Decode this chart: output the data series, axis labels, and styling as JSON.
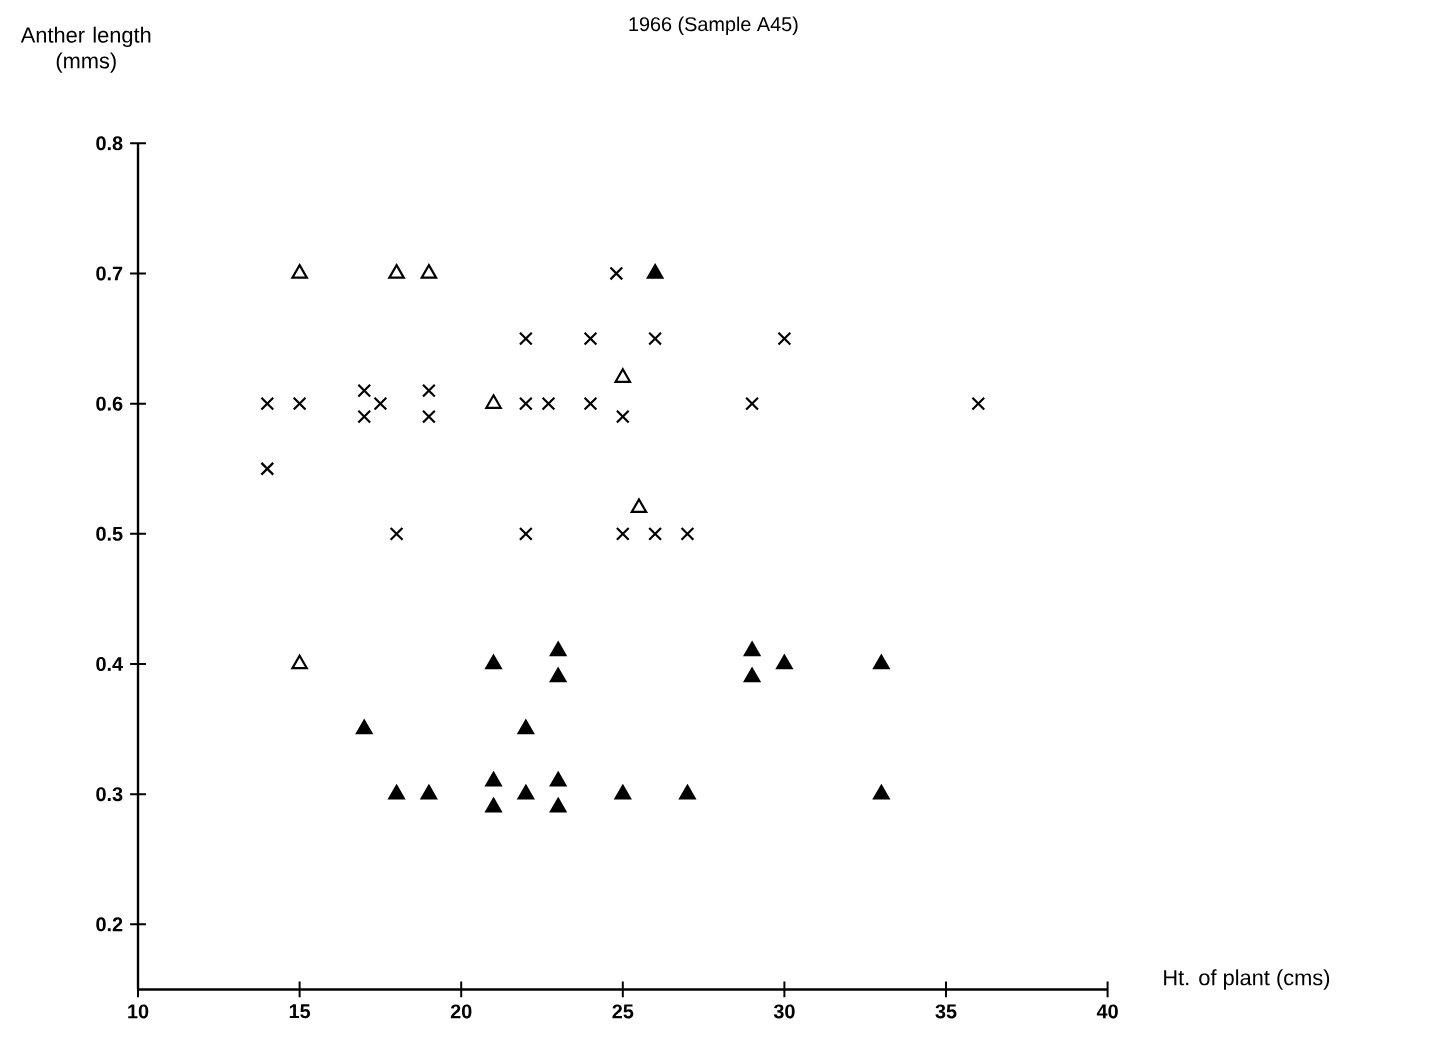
{
  "chart_data": {
    "type": "scatter",
    "title": "1966 (Sample A45)",
    "xlabel": "Ht. of plant (cms)",
    "ylabel": "Anther length (mms)",
    "xlim": [
      10,
      40
    ],
    "ylim": [
      0.15,
      0.8
    ],
    "xticks": [
      10,
      15,
      20,
      25,
      30,
      35,
      40
    ],
    "yticks": [
      0.2,
      0.3,
      0.4,
      0.5,
      0.6,
      0.7,
      0.8
    ],
    "grid": false,
    "series": [
      {
        "color": "#000000",
        "marker": "cross",
        "x": [
          14,
          15,
          14,
          17,
          17,
          17.5,
          19,
          19,
          22,
          22.7,
          24,
          25,
          22,
          24,
          26,
          24.8,
          18,
          22,
          25,
          26,
          27,
          29,
          30,
          36
        ],
        "values": [
          0.6,
          0.6,
          0.55,
          0.61,
          0.59,
          0.6,
          0.61,
          0.59,
          0.6,
          0.6,
          0.6,
          0.59,
          0.65,
          0.65,
          0.65,
          0.7,
          0.5,
          0.5,
          0.5,
          0.5,
          0.5,
          0.6,
          0.65,
          0.6
        ]
      },
      {
        "color": "#ffffff",
        "marker": "triangle",
        "x": [
          15,
          18,
          19,
          21,
          25,
          25.5,
          15
        ],
        "values": [
          0.7,
          0.7,
          0.7,
          0.6,
          0.62,
          0.52,
          0.4
        ]
      },
      {
        "color": "#000000",
        "marker": "triangle",
        "x": [
          26,
          17,
          18,
          19,
          21,
          21,
          21,
          22,
          22,
          23,
          23,
          23,
          23,
          25,
          27,
          29,
          29,
          30,
          33,
          33
        ],
        "values": [
          0.7,
          0.35,
          0.3,
          0.3,
          0.4,
          0.31,
          0.29,
          0.3,
          0.35,
          0.41,
          0.39,
          0.31,
          0.29,
          0.3,
          0.3,
          0.41,
          0.39,
          0.4,
          0.4,
          0.3
        ]
      }
    ]
  }
}
